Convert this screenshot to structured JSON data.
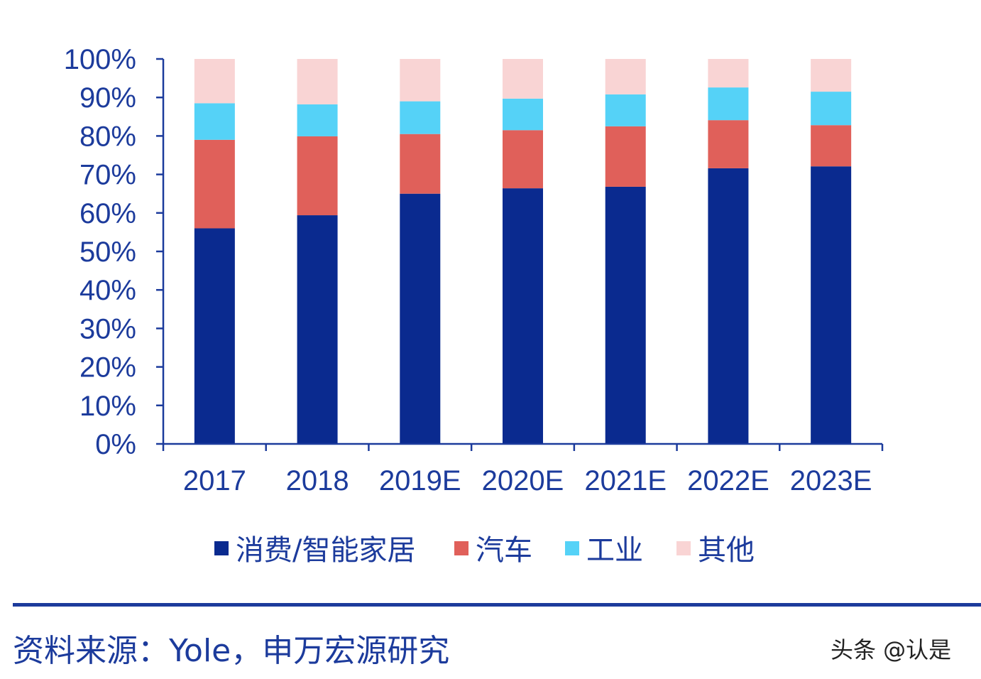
{
  "chart_data": {
    "type": "bar",
    "stacked": true,
    "title": "",
    "xlabel": "",
    "ylabel": "",
    "ylim": [
      0,
      100
    ],
    "yticks": [
      "0%",
      "10%",
      "20%",
      "30%",
      "40%",
      "50%",
      "60%",
      "70%",
      "80%",
      "90%",
      "100%"
    ],
    "categories": [
      "2017",
      "2018",
      "2019E",
      "2020E",
      "2021E",
      "2022E",
      "2023E"
    ],
    "series": [
      {
        "name": "消费/智能家居",
        "color": "#0a2a8f",
        "values": [
          56,
          59.4,
          65,
          66.4,
          66.8,
          71.6,
          72.1
        ]
      },
      {
        "name": "汽车",
        "color": "#e0605a",
        "values": [
          23,
          20.5,
          15.5,
          15.1,
          15.7,
          12.5,
          10.7
        ]
      },
      {
        "name": "工业",
        "color": "#55d2f7",
        "values": [
          9.5,
          8.3,
          8.5,
          8.2,
          8.3,
          8.5,
          8.7
        ]
      },
      {
        "name": "其他",
        "color": "#f9d4d4",
        "values": [
          11.5,
          11.8,
          11,
          10.3,
          9.2,
          7.4,
          8.5
        ]
      }
    ],
    "legend_position": "bottom",
    "grid": false,
    "axis_color": "#1c3b9c"
  },
  "footer": {
    "source": "资料来源：Yole，申万宏源研究",
    "watermark": "头条 @认是"
  }
}
